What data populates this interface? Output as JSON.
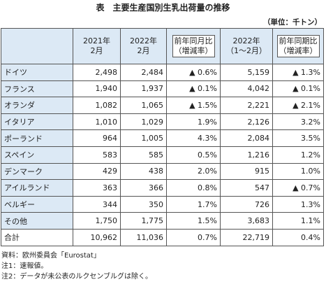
{
  "header": {
    "title": "表　主要生産国別生乳出荷量の推移",
    "unit": "（単位：千トン）"
  },
  "table": {
    "columns": [
      "",
      "2021年\n2月",
      "2022年\n2月",
      "前年同月比\n（増減率）",
      "2022年\n（1～2月）",
      "前年同期比\n（増減率）"
    ],
    "rows": [
      [
        "ドイツ",
        "2,498",
        "2,484",
        "▲ 0.6%",
        "5,159",
        "▲ 1.3%"
      ],
      [
        "フランス",
        "1,940",
        "1,937",
        "▲ 0.1%",
        "4,042",
        "▲ 0.1%"
      ],
      [
        "オランダ",
        "1,082",
        "1,065",
        "▲ 1.5%",
        "2,221",
        "▲ 2.1%"
      ],
      [
        "イタリア",
        "1,010",
        "1,029",
        "1.9%",
        "2,126",
        "3.2%"
      ],
      [
        "ポーランド",
        "964",
        "1,005",
        "4.3%",
        "2,084",
        "3.5%"
      ],
      [
        "スペイン",
        "583",
        "585",
        "0.5%",
        "1,216",
        "1.2%"
      ],
      [
        "デンマーク",
        "429",
        "438",
        "2.0%",
        "915",
        "1.0%"
      ],
      [
        "アイルランド",
        "363",
        "366",
        "0.8%",
        "547",
        "▲ 0.7%"
      ],
      [
        "ベルギー",
        "344",
        "350",
        "1.7%",
        "726",
        "1.3%"
      ],
      [
        "その他",
        "1,750",
        "1,775",
        "1.5%",
        "3,683",
        "1.1%"
      ],
      [
        "合計",
        "10,962",
        "11,036",
        "0.7%",
        "22,719",
        "0.4%"
      ]
    ]
  },
  "notes": [
    "資料：欧州委員会「Eurostat」",
    "注1：速報値。",
    "注2：データが未公表のルクセンブルグは除く。"
  ]
}
